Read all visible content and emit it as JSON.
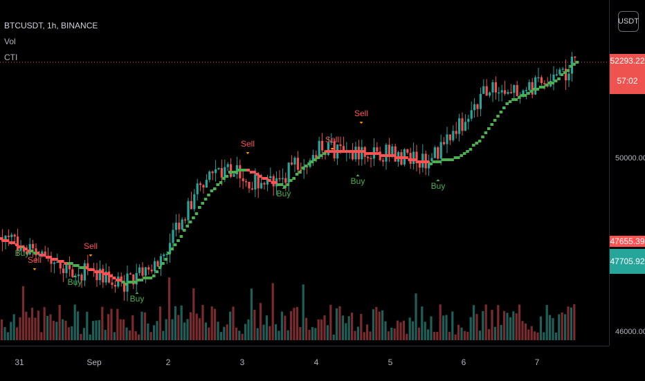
{
  "symbol": {
    "title": "BTCUSDT, 1h, BINANCE"
  },
  "indicators": [
    "Vol",
    "CTI"
  ],
  "currency_button": "USDT",
  "price_axis": {
    "labels": [
      "50000.00",
      "46000.00"
    ],
    "last_price": "52293.22",
    "countdown": "57:02",
    "cti_value": "47655.39",
    "cti_value_partial": "47655.39",
    "other_value": "47705.92"
  },
  "time_axis": [
    "31",
    "Sep",
    "2",
    "3",
    "4",
    "5",
    "6",
    "7"
  ],
  "signals": [
    {
      "type": "Buy",
      "label": "Buy"
    },
    {
      "type": "Sell",
      "label": "Sell"
    },
    {
      "type": "Buy",
      "label": "Buy"
    },
    {
      "type": "Sell",
      "label": "Sell"
    },
    {
      "type": "Buy",
      "label": "Buy"
    },
    {
      "type": "Sell",
      "label": "Sell"
    },
    {
      "type": "Buy",
      "label": "Buy"
    },
    {
      "type": "Sell",
      "label": "Sell"
    },
    {
      "type": "Buy",
      "label": "Buy"
    },
    {
      "type": "Sell",
      "label": "Sell"
    },
    {
      "type": "Buy",
      "label": "Buy"
    }
  ],
  "colors": {
    "up": "#26a69a",
    "down": "#ef5350",
    "cti_up": "#4caf50",
    "cti_down": "#ff5252",
    "price_line": "#ef5350"
  }
}
